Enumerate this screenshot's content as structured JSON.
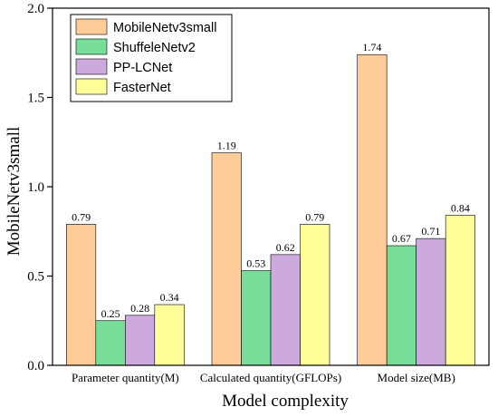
{
  "chart_data": {
    "type": "bar",
    "categories": [
      "Parameter quantity(M)",
      "Calculated quantity(GFLOPs)",
      "Model size(MB)"
    ],
    "series": [
      {
        "name": "MobileNetv3small",
        "values": [
          0.79,
          1.19,
          1.74
        ],
        "color": "#FFCC99"
      },
      {
        "name": "ShuffeleNetv2",
        "values": [
          0.25,
          0.53,
          0.67
        ],
        "color": "#77DD99"
      },
      {
        "name": "PP-LCNet",
        "values": [
          0.28,
          0.62,
          0.71
        ],
        "color": "#CCAADD"
      },
      {
        "name": "FasterNet",
        "values": [
          0.34,
          0.79,
          0.84
        ],
        "color": "#FFFF99"
      }
    ],
    "data_labels": [
      [
        "0.79",
        "1.19",
        "1.74"
      ],
      [
        "0.25",
        "0.53",
        "0.67"
      ],
      [
        "0.28",
        "0.62",
        "0.71"
      ],
      [
        "0.34",
        "0.79",
        "0.84"
      ]
    ],
    "title": "",
    "xlabel": "Model complexity",
    "ylabel": "MobileNetv3small",
    "ylim": [
      0,
      2.0
    ],
    "yticks": [
      0.0,
      0.5,
      1.0,
      1.5,
      2.0
    ],
    "ytick_labels": [
      "0.0",
      "0.5",
      "1.0",
      "1.5",
      "2.0"
    ],
    "grid": false,
    "legend_position": "top-left"
  }
}
